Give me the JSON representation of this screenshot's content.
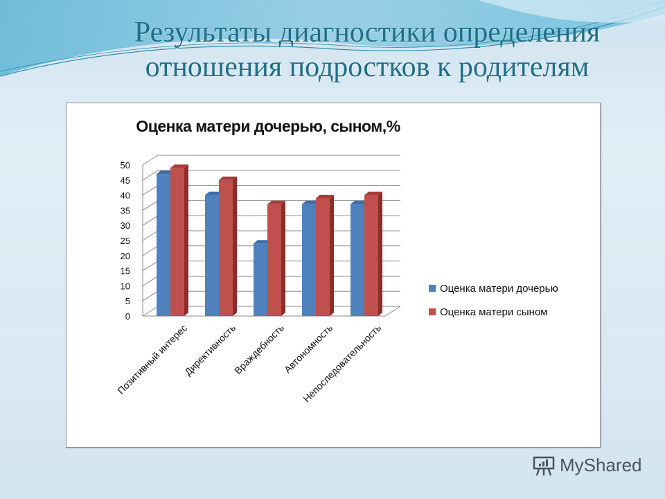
{
  "slide": {
    "title_line1": "Результаты диагностики определения",
    "title_line2": "отношения подростков к родителям"
  },
  "chart": {
    "title": "Оценка матери дочерью, сыном,%",
    "legend": [
      {
        "label": "Оценка матери дочерью",
        "color": "#4f81bd"
      },
      {
        "label": "Оценка матери сыном",
        "color": "#c0504d"
      }
    ]
  },
  "watermark": {
    "text": "MyShared",
    "icon": "presentation-board-icon"
  },
  "chart_data": {
    "type": "bar",
    "title": "Оценка матери дочерью, сыном,%",
    "categories": [
      "Позитивный интерес",
      "Директивность",
      "Враждебность",
      "Автономность",
      "Непоследовательность"
    ],
    "series": [
      {
        "name": "Оценка матери дочерью",
        "color": "#4f81bd",
        "values": [
          47,
          40,
          24,
          37,
          37
        ]
      },
      {
        "name": "Оценка матери сыном",
        "color": "#c0504d",
        "values": [
          49,
          45,
          37,
          39,
          40
        ]
      }
    ],
    "xlabel": "",
    "ylabel": "",
    "ylim": [
      0,
      50
    ],
    "yticks": [
      0,
      5,
      10,
      15,
      20,
      25,
      30,
      35,
      40,
      45,
      50
    ],
    "grid": true,
    "legend_position": "right",
    "style": "3d-clustered-column"
  }
}
